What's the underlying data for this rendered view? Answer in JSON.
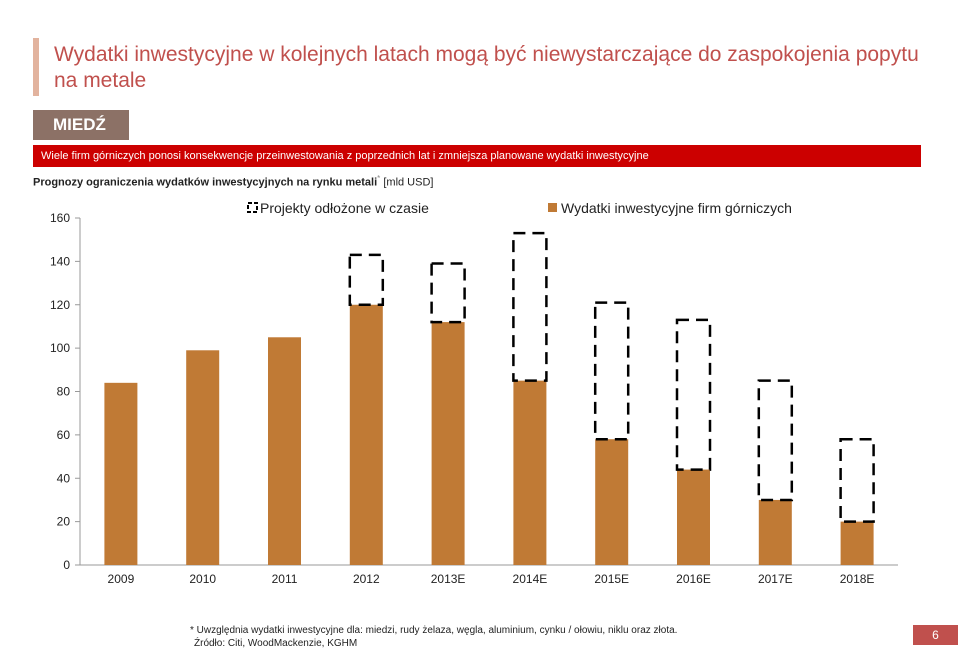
{
  "header": {
    "title": "Wydatki inwestycyjne w kolejnych latach mogą być niewystarczające do zaspokojenia popytu na metale",
    "tag": "MIEDŹ",
    "banner": "Wiele firm górniczych ponosi konsekwencje przeinwestowania z poprzednich lat i zmniejsza planowane wydatki inwestycyjne",
    "subtitle_bold": "Prognozy ograniczenia wydatków inwestycyjnych na rynku metali",
    "subtitle_mark": "*",
    "subtitle_unit": "[mld USD]"
  },
  "footer": {
    "note": "* Uwzględnia wydatki inwestycyjne dla: miedzi, rudy żelaza, węgla, aluminium, cynku / ołowiu, niklu oraz złota.",
    "source": "Źródło: Citi, WoodMackenzie, KGHM",
    "page": "6"
  },
  "colors": {
    "bar": "#c07a35",
    "accent": "#c0504d",
    "banner": "#cc0000"
  },
  "chart_data": {
    "type": "bar",
    "categories": [
      "2009",
      "2010",
      "2011",
      "2012",
      "2013E",
      "2014E",
      "2015E",
      "2016E",
      "2017E",
      "2018E"
    ],
    "series": [
      {
        "name": "Wydatki inwestycyjne firm górniczych",
        "values": [
          84,
          99,
          105,
          120,
          112,
          85,
          58,
          44,
          30,
          20
        ]
      },
      {
        "name": "Projekty odłożone w czasie",
        "values": [
          0,
          0,
          0,
          23,
          27,
          68,
          63,
          69,
          55,
          38
        ],
        "style": "dashed-outline-stacked"
      }
    ],
    "yticks": [
      0,
      20,
      40,
      60,
      80,
      100,
      120,
      140,
      160
    ],
    "ylim": [
      0,
      160
    ],
    "legend": "top"
  }
}
